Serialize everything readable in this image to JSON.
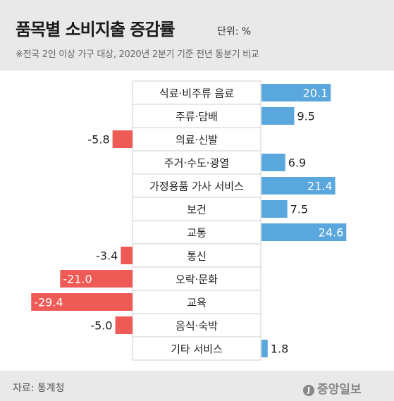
{
  "header": {
    "title": "품목별 소비지출 증감률",
    "unit": "단위: %",
    "subtitle": "※전국 2인 이상 가구 대상, 2020년 2분기 기준 전년 동분기 비교"
  },
  "footer": {
    "source": "자료: 통계청",
    "logo_mark": "J",
    "logo_text": "중앙일보"
  },
  "colors": {
    "positive": "#5aa7dd",
    "negative": "#ee5a55",
    "label_box": "#ffffff",
    "label_border": "#cfcfcf"
  },
  "chart_data": {
    "type": "bar",
    "orientation": "horizontal-diverging",
    "categories": [
      "식료·비주류 음료",
      "주류·담배",
      "의료·신발",
      "주거·수도·광열",
      "가정용품 가사 서비스",
      "보건",
      "교통",
      "통신",
      "오락·문화",
      "교육",
      "음식·숙박",
      "기타 서비스"
    ],
    "values": [
      20.1,
      9.5,
      -5.8,
      6.9,
      21.4,
      7.5,
      24.6,
      -3.4,
      -21.0,
      -29.4,
      -5.0,
      1.8
    ],
    "value_labels": [
      "20.1",
      "9.5",
      "-5.8",
      "6.9",
      "21.4",
      "7.5",
      "24.6",
      "-3.4",
      "-21.0",
      "-29.4",
      "-5.0",
      "1.8"
    ],
    "title": "품목별 소비지출 증감률",
    "unit": "%"
  }
}
